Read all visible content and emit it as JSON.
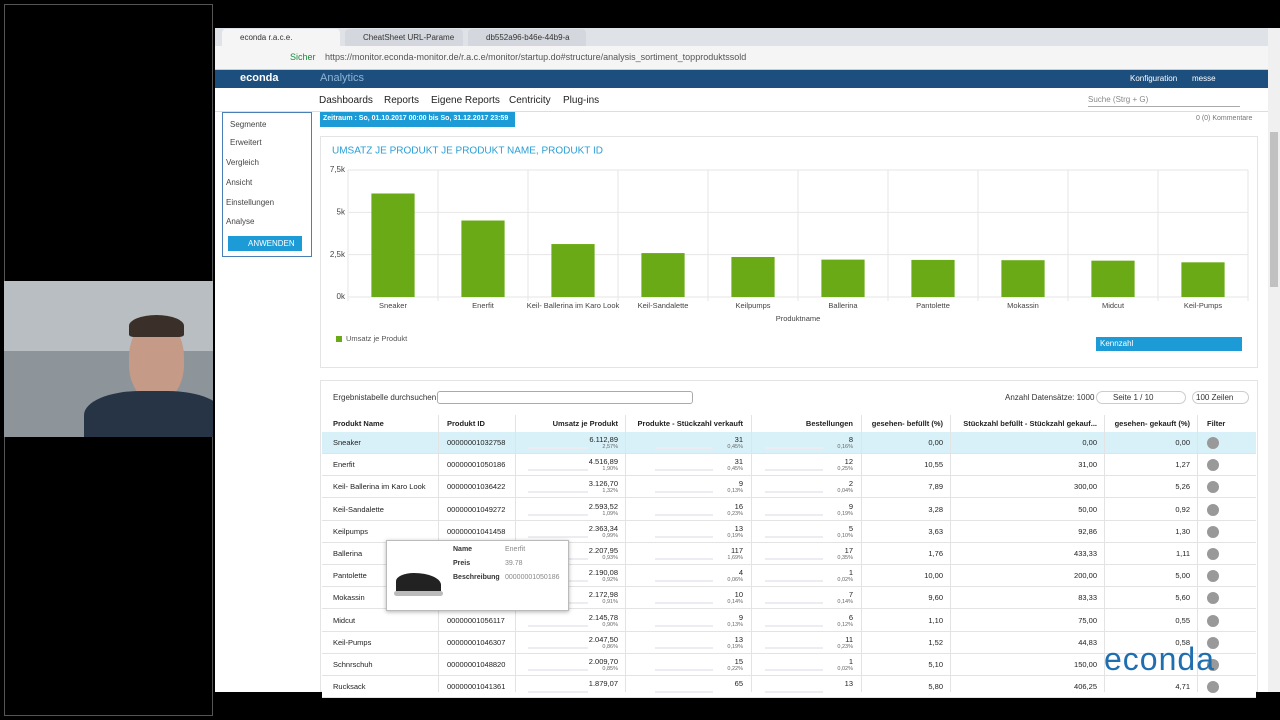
{
  "browser": {
    "tabs": [
      "econda r.a.c.e.",
      "CheatSheet URL-Parame",
      "db552a96-b46e-44b9-a"
    ],
    "secure_label": "Sicher",
    "url": "https://monitor.econda-monitor.de/r.a.c.e/monitor/startup.do#structure/analysis_sortiment_topproduktssold"
  },
  "app": {
    "logo": "econda",
    "section": "Analytics",
    "config": "Konfiguration",
    "user": "messe",
    "nav": [
      "Dashboards",
      "Reports",
      "Eigene Reports",
      "Centricity",
      "Plug-ins"
    ],
    "search_placeholder": "Suche (Strg + G)"
  },
  "sidebar": {
    "items": [
      "Segmente",
      "Erweitert",
      "Vergleich",
      "Ansicht",
      "Einstellungen",
      "Analyse"
    ],
    "apply": "ANWENDEN"
  },
  "period": "Zeitraum : So, 01.10.2017 00:00 bis So, 31.12.2017 23:59",
  "comments": "0 (0) Kommentare",
  "chart_data": {
    "type": "bar",
    "title": "UMSATZ JE PRODUKT JE PRODUKT NAME, PRODUKT ID",
    "x_label": "Produktname",
    "categories": [
      "Sneaker",
      "Enerfit",
      "Keil- Ballerina im Karo Look",
      "Keil-Sandalette",
      "Keilpumps",
      "Ballerina",
      "Pantolette",
      "Mokassin",
      "Midcut",
      "Keil-Pumps"
    ],
    "series": [
      {
        "name": "Umsatz je Produkt",
        "color": "#6aaa16",
        "values": [
          6112.89,
          4516.89,
          3126.7,
          2593.52,
          2363.34,
          2207.95,
          2190.08,
          2172.98,
          2145.78,
          2047.5
        ]
      }
    ],
    "ylim": [
      0,
      7500
    ],
    "yticks": [
      {
        "value": 0,
        "label": "0k"
      },
      {
        "value": 2500,
        "label": "2,5k"
      },
      {
        "value": 5000,
        "label": "5k"
      },
      {
        "value": 7500,
        "label": "7,5k"
      }
    ],
    "grid": true,
    "legend_position": "bottom-left"
  },
  "chart_controls": {
    "kpi": "Kennzahl"
  },
  "table": {
    "search_label": "Ergebnistabelle durchsuchen",
    "record_count": "Anzahl Datensätze: 1000",
    "page": "Seite 1 / 10",
    "rows_per_page": "100 Zeilen",
    "columns": [
      "Produkt Name",
      "Produkt ID",
      "Umsatz je Produkt",
      "Produkte - Stückzahl verkauft",
      "Bestellungen",
      "gesehen- befüllt (%)",
      "Stückzahl befüllt - Stückzahl gekauf...",
      "gesehen- gekauft (%)",
      "Filter"
    ],
    "rows": [
      [
        "Sneaker",
        "00000001032758",
        "6.112,89",
        "2,57%",
        "31",
        "0,45%",
        "8",
        "0,16%",
        "0,00",
        "0,00",
        "0,00"
      ],
      [
        "Enerfit",
        "00000001050186",
        "4.516,89",
        "1,90%",
        "31",
        "0,45%",
        "12",
        "0,25%",
        "10,55",
        "31,00",
        "1,27"
      ],
      [
        "Keil- Ballerina im Karo Look",
        "00000001036422",
        "3.126,70",
        "1,32%",
        "9",
        "0,13%",
        "2",
        "0,04%",
        "7,89",
        "300,00",
        "5,26"
      ],
      [
        "Keil-Sandalette",
        "00000001049272",
        "2.593,52",
        "1,09%",
        "16",
        "0,23%",
        "9",
        "0,19%",
        "3,28",
        "50,00",
        "0,92"
      ],
      [
        "Keilpumps",
        "00000001041458",
        "2.363,34",
        "0,99%",
        "13",
        "0,19%",
        "5",
        "0,10%",
        "3,63",
        "92,86",
        "1,30"
      ],
      [
        "Ballerina",
        null,
        "2.207,95",
        "0,93%",
        "117",
        "1,69%",
        "17",
        "0,35%",
        "1,76",
        "433,33",
        "1,11"
      ],
      [
        "Pantolette",
        null,
        "2.190,08",
        "0,92%",
        "4",
        "0,06%",
        "1",
        "0,02%",
        "10,00",
        "200,00",
        "5,00"
      ],
      [
        "Mokassin",
        null,
        "2.172,98",
        "0,91%",
        "10",
        "0,14%",
        "7",
        "0,14%",
        "9,60",
        "83,33",
        "5,60"
      ],
      [
        "Midcut",
        "00000001056117",
        "2.145,78",
        "0,90%",
        "9",
        "0,13%",
        "6",
        "0,12%",
        "1,10",
        "75,00",
        "0,55"
      ],
      [
        "Keil-Pumps",
        "00000001046307",
        "2.047,50",
        "0,86%",
        "13",
        "0,19%",
        "11",
        "0,23%",
        "1,52",
        "44,83",
        "0,58"
      ],
      [
        "Schnrschuh",
        "00000001048820",
        "2.009,70",
        "0,85%",
        "15",
        "0,22%",
        "1",
        "0,02%",
        "5,10",
        "150,00",
        null
      ],
      [
        "Rucksack",
        "00000001041361",
        "1.879,07",
        null,
        "65",
        null,
        "13",
        null,
        "5,80",
        "406,25",
        "4,71"
      ]
    ]
  },
  "tooltip": {
    "labels": [
      "Name",
      "Preis",
      "Beschreibung"
    ],
    "values": [
      "Enerfit",
      "39.78",
      "00000001050186"
    ]
  },
  "watermark": "econda"
}
